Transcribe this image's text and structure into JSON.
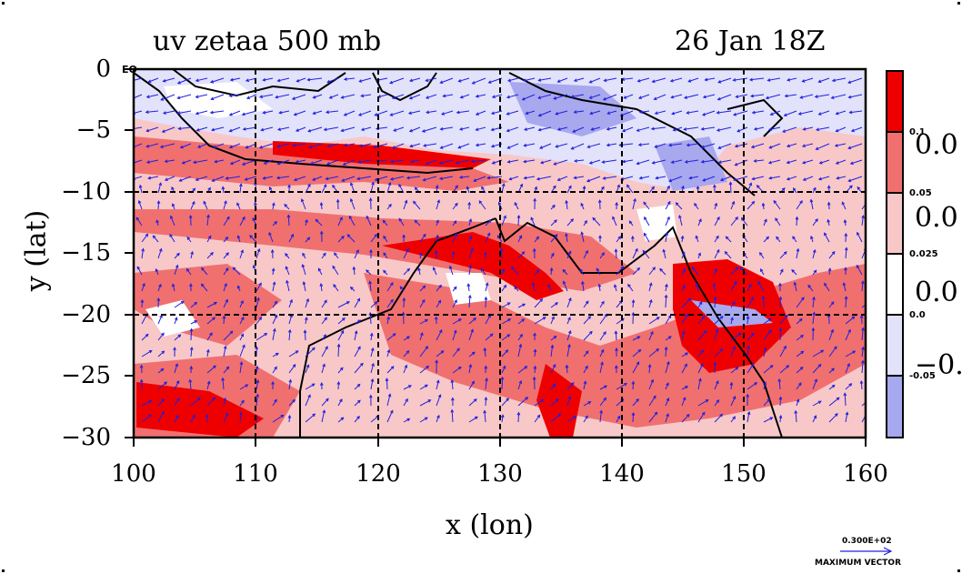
{
  "title_left": "uv zetaa 500 mb",
  "title_right": "26 Jan 18Z",
  "xlabel": "x (lon)",
  "ylabel": "y (lat)",
  "chart_data": {
    "type": "heatmap",
    "title": "uv zetaa 500 mb",
    "subtitle": "26 Jan 18Z",
    "xlabel": "x (lon)",
    "ylabel": "y (lat)",
    "xlim": [
      100,
      160
    ],
    "ylim": [
      -30,
      0
    ],
    "xticks": [
      "100",
      "110",
      "120",
      "130",
      "140",
      "150",
      "160"
    ],
    "yticks": [
      "0",
      "−5",
      "−10",
      "−15",
      "−20",
      "−25",
      "−30"
    ],
    "grid": true,
    "colorbar": {
      "levels": [
        "0.1",
        "0.05",
        "0.025",
        "0.0",
        "-0.05"
      ],
      "truncated_labels": [
        "0.0",
        "0.0",
        "0.0",
        "−0."
      ],
      "colors": [
        "#ee0000",
        "#f07070",
        "#f8c8c8",
        "#ffffff",
        "#e2e2fb",
        "#a8a8ee"
      ]
    },
    "vector_key": {
      "value": "0.300E+02",
      "label": "MAXIMUM VECTOR"
    }
  },
  "corner_label": "EQ",
  "colors": {
    "strong_pos": "#ee0000",
    "mid_pos": "#f07070",
    "weak_pos": "#f8c8c8",
    "zero": "#ffffff",
    "weak_neg": "#e2e2fb",
    "strong_neg": "#a8a8ee",
    "vector": "#2020dd",
    "coast": "#000000"
  }
}
